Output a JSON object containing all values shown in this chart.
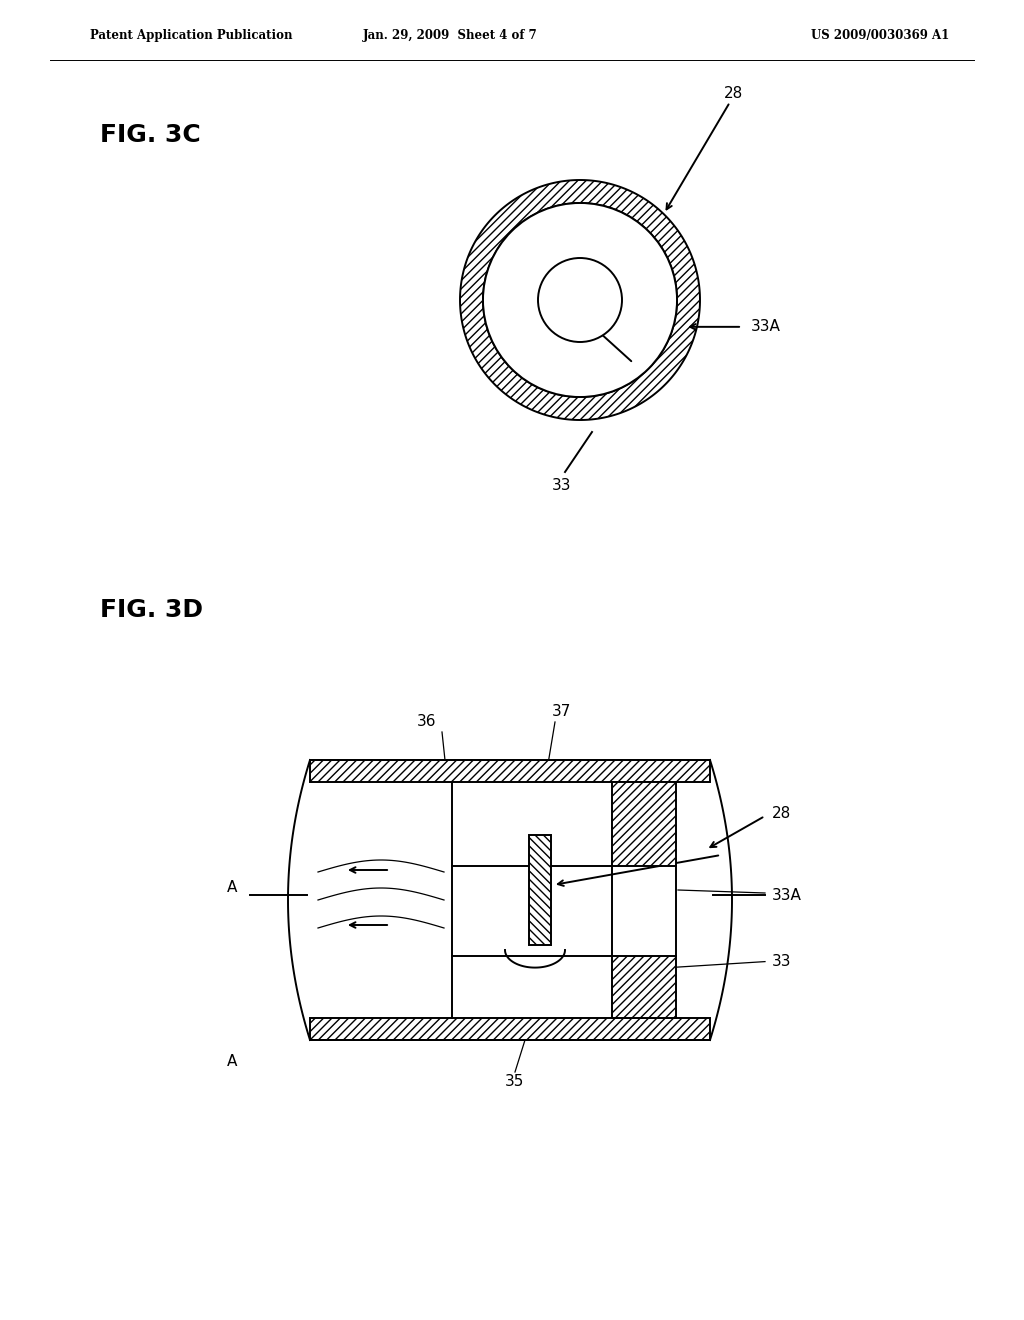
{
  "background_color": "#ffffff",
  "page_header_left": "Patent Application Publication",
  "page_header_middle": "Jan. 29, 2009  Sheet 4 of 7",
  "page_header_right": "US 2009/0030369 A1",
  "fig3c_label": "FIG. 3C",
  "fig3d_label": "FIG. 3D",
  "line_color": "#000000"
}
